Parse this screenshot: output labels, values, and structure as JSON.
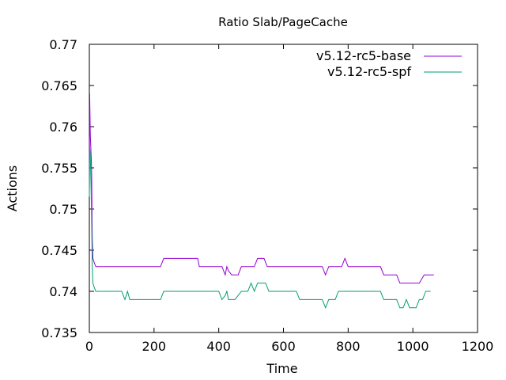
{
  "chart_data": {
    "type": "line",
    "title": "Ratio Slab/PageCache",
    "xlabel": "Time",
    "ylabel": "Actions",
    "xlim": [
      0,
      1200
    ],
    "ylim": [
      0.735,
      0.77
    ],
    "x_ticks": [
      0,
      200,
      400,
      600,
      800,
      1000,
      1200
    ],
    "x_tick_labels": [
      "0",
      "200",
      "400",
      "600",
      "800",
      "1000",
      "1200"
    ],
    "y_ticks": [
      0.735,
      0.74,
      0.745,
      0.75,
      0.755,
      0.76,
      0.765,
      0.77
    ],
    "y_tick_labels": [
      "0.735",
      "0.74",
      "0.745",
      "0.75",
      "0.755",
      "0.76",
      "0.765",
      "0.77"
    ],
    "legend_position": "top-right",
    "grid": false,
    "series": [
      {
        "name": "v5.12-rc5-base",
        "color": "#9400d3",
        "points": [
          [
            0,
            0.7515
          ],
          [
            1,
            0.764
          ],
          [
            3,
            0.759
          ],
          [
            5,
            0.757
          ],
          [
            7,
            0.755
          ],
          [
            9,
            0.7465
          ],
          [
            11,
            0.744
          ],
          [
            15,
            0.7435
          ],
          [
            20,
            0.743
          ],
          [
            100,
            0.743
          ],
          [
            220,
            0.743
          ],
          [
            230,
            0.744
          ],
          [
            335,
            0.744
          ],
          [
            340,
            0.743
          ],
          [
            410,
            0.743
          ],
          [
            415,
            0.7425
          ],
          [
            420,
            0.742
          ],
          [
            425,
            0.743
          ],
          [
            430,
            0.7425
          ],
          [
            440,
            0.742
          ],
          [
            460,
            0.742
          ],
          [
            470,
            0.743
          ],
          [
            510,
            0.743
          ],
          [
            520,
            0.744
          ],
          [
            540,
            0.744
          ],
          [
            550,
            0.743
          ],
          [
            720,
            0.743
          ],
          [
            725,
            0.7425
          ],
          [
            730,
            0.742
          ],
          [
            735,
            0.7425
          ],
          [
            740,
            0.743
          ],
          [
            780,
            0.743
          ],
          [
            790,
            0.744
          ],
          [
            800,
            0.743
          ],
          [
            900,
            0.743
          ],
          [
            910,
            0.742
          ],
          [
            950,
            0.742
          ],
          [
            960,
            0.741
          ],
          [
            1020,
            0.741
          ],
          [
            1035,
            0.742
          ],
          [
            1065,
            0.742
          ]
        ]
      },
      {
        "name": "v5.12-rc5-spf",
        "color": "#009e73",
        "points": [
          [
            0,
            0.7515
          ],
          [
            1,
            0.7575
          ],
          [
            3,
            0.7565
          ],
          [
            5,
            0.753
          ],
          [
            7,
            0.749
          ],
          [
            9,
            0.743
          ],
          [
            11,
            0.741
          ],
          [
            15,
            0.7405
          ],
          [
            20,
            0.74
          ],
          [
            100,
            0.74
          ],
          [
            105,
            0.7395
          ],
          [
            110,
            0.739
          ],
          [
            118,
            0.74
          ],
          [
            125,
            0.739
          ],
          [
            220,
            0.739
          ],
          [
            230,
            0.74
          ],
          [
            400,
            0.74
          ],
          [
            410,
            0.739
          ],
          [
            420,
            0.7395
          ],
          [
            425,
            0.74
          ],
          [
            430,
            0.739
          ],
          [
            450,
            0.739
          ],
          [
            460,
            0.7395
          ],
          [
            470,
            0.74
          ],
          [
            490,
            0.74
          ],
          [
            500,
            0.741
          ],
          [
            510,
            0.74
          ],
          [
            520,
            0.741
          ],
          [
            545,
            0.741
          ],
          [
            555,
            0.74
          ],
          [
            640,
            0.74
          ],
          [
            650,
            0.739
          ],
          [
            720,
            0.739
          ],
          [
            730,
            0.738
          ],
          [
            740,
            0.739
          ],
          [
            760,
            0.739
          ],
          [
            770,
            0.74
          ],
          [
            900,
            0.74
          ],
          [
            910,
            0.739
          ],
          [
            950,
            0.739
          ],
          [
            960,
            0.738
          ],
          [
            970,
            0.738
          ],
          [
            980,
            0.739
          ],
          [
            990,
            0.738
          ],
          [
            1010,
            0.738
          ],
          [
            1020,
            0.739
          ],
          [
            1030,
            0.739
          ],
          [
            1040,
            0.74
          ],
          [
            1055,
            0.74
          ]
        ]
      }
    ]
  }
}
